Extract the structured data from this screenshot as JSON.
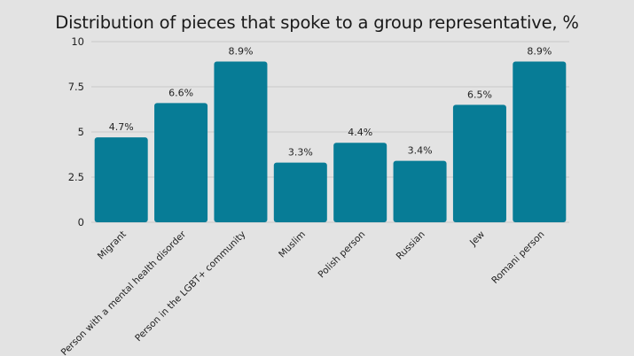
{
  "chart_data": {
    "type": "bar",
    "title": "Distribution of pieces that spoke to a group representative, %",
    "xlabel": "",
    "ylabel": "",
    "categories": [
      "Migrant",
      "Person with a mental health disorder",
      "Person in the LGBT+ community",
      "Muslim",
      "Polish person",
      "Russian",
      "Jew",
      "Romani person"
    ],
    "values": [
      4.7,
      6.6,
      8.9,
      3.3,
      4.4,
      3.4,
      6.5,
      8.9
    ],
    "data_labels": [
      "4.7%",
      "6.6%",
      "8.9%",
      "3.3%",
      "4.4%",
      "3.4%",
      "6.5%",
      "8.9%"
    ],
    "ylim": [
      0,
      10
    ],
    "yticks": [
      "0",
      "2.5",
      "5",
      "7.5",
      "10"
    ],
    "ytick_values": [
      0,
      2.5,
      5,
      7.5,
      10
    ],
    "grid": true,
    "bar_color": "#077c96",
    "grid_color": "#c9c9c9",
    "background": "#e3e3e3"
  }
}
